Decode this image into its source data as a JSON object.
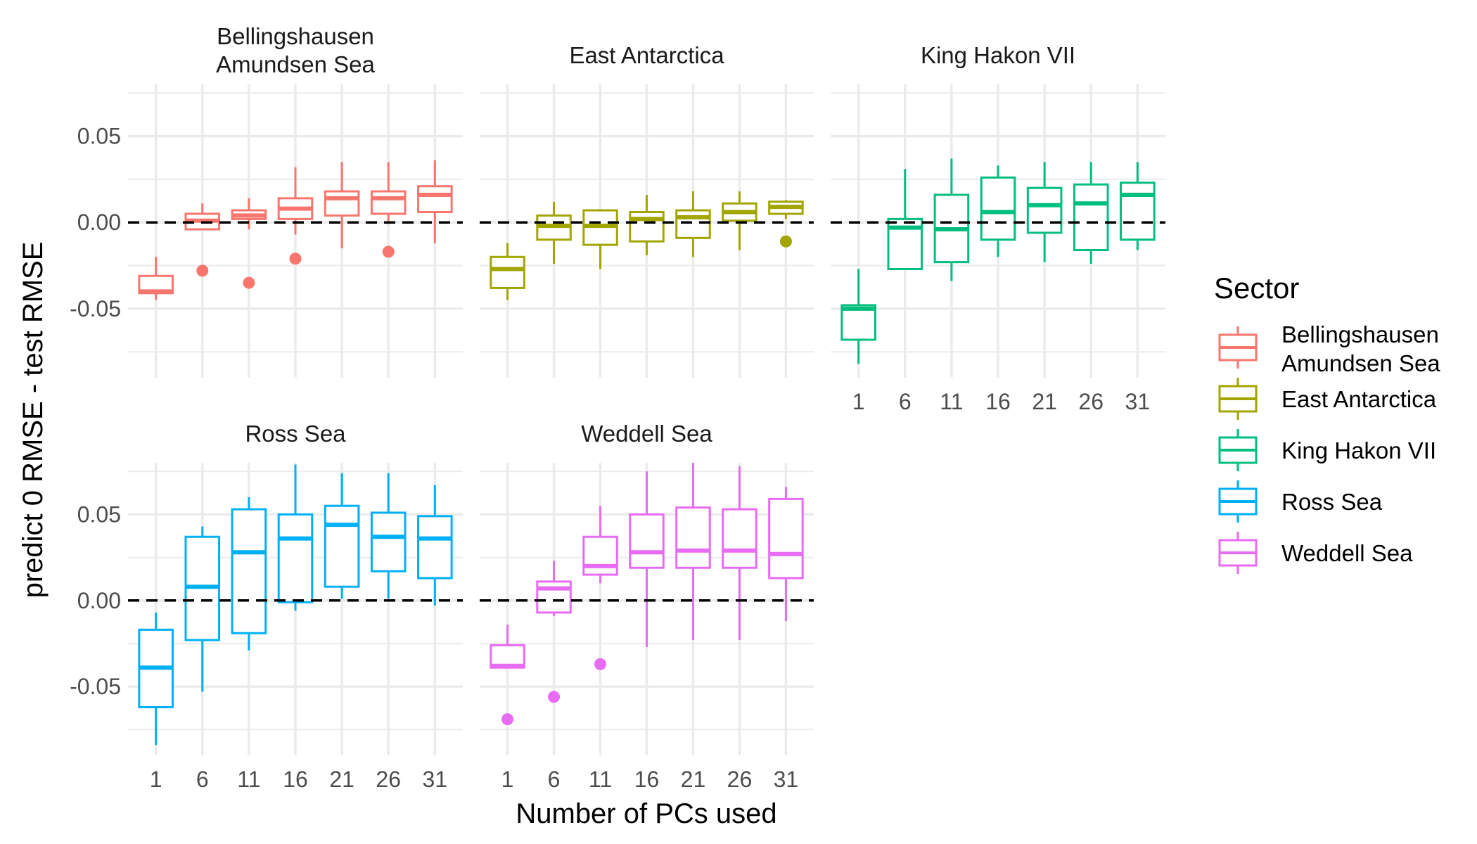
{
  "chart_data": {
    "type": "boxplot",
    "layout": "facet_wrap",
    "xlabel": "Number of PCs used",
    "ylabel": "predict 0 RMSE - test RMSE",
    "x_categories": [
      "1",
      "6",
      "11",
      "16",
      "21",
      "26",
      "31"
    ],
    "y_ticks": [
      {
        "value": -0.05,
        "label": "-0.05"
      },
      {
        "value": 0.0,
        "label": "0.00"
      },
      {
        "value": 0.05,
        "label": "0.05"
      }
    ],
    "ylim": [
      -0.09,
      0.08
    ],
    "reference_line": {
      "y": 0,
      "style": "dashed"
    },
    "grid": true,
    "legend": {
      "title": "Sector",
      "position": "right",
      "items": [
        {
          "line1": "Bellingshausen",
          "line2": "Amundsen Sea",
          "color": "#F8766D"
        },
        {
          "line1": "East Antarctica",
          "line2": "",
          "color": "#A3A500"
        },
        {
          "line1": "King Hakon VII",
          "line2": "",
          "color": "#00BF7D"
        },
        {
          "line1": "Ross Sea",
          "line2": "",
          "color": "#00B0F6"
        },
        {
          "line1": "Weddell Sea",
          "line2": "",
          "color": "#E76BF3"
        }
      ]
    },
    "panels": [
      {
        "title_line1": "Bellingshausen",
        "title_line2": "Amundsen Sea",
        "color": "#F8766D",
        "boxes": [
          {
            "x": "1",
            "lower_whisker": -0.045,
            "q1": -0.041,
            "median": -0.04,
            "q3": -0.031,
            "upper_whisker": -0.02,
            "outliers": []
          },
          {
            "x": "6",
            "lower_whisker": -0.004,
            "q1": -0.004,
            "median": 0.001,
            "q3": 0.005,
            "upper_whisker": 0.011,
            "outliers": [
              -0.028
            ]
          },
          {
            "x": "11",
            "lower_whisker": -0.004,
            "q1": 0.002,
            "median": 0.004,
            "q3": 0.007,
            "upper_whisker": 0.014,
            "outliers": [
              -0.035
            ]
          },
          {
            "x": "16",
            "lower_whisker": -0.007,
            "q1": 0.002,
            "median": 0.008,
            "q3": 0.014,
            "upper_whisker": 0.032,
            "outliers": [
              -0.021
            ]
          },
          {
            "x": "21",
            "lower_whisker": -0.015,
            "q1": 0.004,
            "median": 0.014,
            "q3": 0.018,
            "upper_whisker": 0.035,
            "outliers": []
          },
          {
            "x": "26",
            "lower_whisker": -0.001,
            "q1": 0.005,
            "median": 0.014,
            "q3": 0.018,
            "upper_whisker": 0.035,
            "outliers": [
              -0.017
            ]
          },
          {
            "x": "31",
            "lower_whisker": -0.012,
            "q1": 0.006,
            "median": 0.016,
            "q3": 0.021,
            "upper_whisker": 0.036,
            "outliers": []
          }
        ]
      },
      {
        "title_line1": "East Antarctica",
        "title_line2": "",
        "color": "#A3A500",
        "boxes": [
          {
            "x": "1",
            "lower_whisker": -0.045,
            "q1": -0.038,
            "median": -0.027,
            "q3": -0.02,
            "upper_whisker": -0.012,
            "outliers": []
          },
          {
            "x": "6",
            "lower_whisker": -0.024,
            "q1": -0.01,
            "median": -0.002,
            "q3": 0.004,
            "upper_whisker": 0.012,
            "outliers": []
          },
          {
            "x": "11",
            "lower_whisker": -0.027,
            "q1": -0.013,
            "median": -0.002,
            "q3": 0.007,
            "upper_whisker": 0.007,
            "outliers": []
          },
          {
            "x": "16",
            "lower_whisker": -0.019,
            "q1": -0.011,
            "median": 0.002,
            "q3": 0.006,
            "upper_whisker": 0.016,
            "outliers": []
          },
          {
            "x": "21",
            "lower_whisker": -0.02,
            "q1": -0.009,
            "median": 0.003,
            "q3": 0.007,
            "upper_whisker": 0.018,
            "outliers": []
          },
          {
            "x": "26",
            "lower_whisker": -0.016,
            "q1": 0.001,
            "median": 0.006,
            "q3": 0.011,
            "upper_whisker": 0.018,
            "outliers": []
          },
          {
            "x": "31",
            "lower_whisker": 0.002,
            "q1": 0.005,
            "median": 0.009,
            "q3": 0.012,
            "upper_whisker": 0.013,
            "outliers": [
              -0.011
            ]
          }
        ]
      },
      {
        "title_line1": "King Hakon VII",
        "title_line2": "",
        "color": "#00BF7D",
        "boxes": [
          {
            "x": "1",
            "lower_whisker": -0.082,
            "q1": -0.068,
            "median": -0.05,
            "q3": -0.048,
            "upper_whisker": -0.027,
            "outliers": []
          },
          {
            "x": "6",
            "lower_whisker": -0.027,
            "q1": -0.027,
            "median": -0.003,
            "q3": 0.002,
            "upper_whisker": 0.031,
            "outliers": []
          },
          {
            "x": "11",
            "lower_whisker": -0.034,
            "q1": -0.023,
            "median": -0.004,
            "q3": 0.016,
            "upper_whisker": 0.037,
            "outliers": []
          },
          {
            "x": "16",
            "lower_whisker": -0.02,
            "q1": -0.01,
            "median": 0.006,
            "q3": 0.026,
            "upper_whisker": 0.033,
            "outliers": []
          },
          {
            "x": "21",
            "lower_whisker": -0.023,
            "q1": -0.006,
            "median": 0.01,
            "q3": 0.02,
            "upper_whisker": 0.035,
            "outliers": []
          },
          {
            "x": "26",
            "lower_whisker": -0.024,
            "q1": -0.016,
            "median": 0.011,
            "q3": 0.022,
            "upper_whisker": 0.035,
            "outliers": []
          },
          {
            "x": "31",
            "lower_whisker": -0.016,
            "q1": -0.01,
            "median": 0.016,
            "q3": 0.023,
            "upper_whisker": 0.035,
            "outliers": []
          }
        ]
      },
      {
        "title_line1": "Ross Sea",
        "title_line2": "",
        "color": "#00B0F6",
        "boxes": [
          {
            "x": "1",
            "lower_whisker": -0.084,
            "q1": -0.062,
            "median": -0.039,
            "q3": -0.017,
            "upper_whisker": -0.007,
            "outliers": []
          },
          {
            "x": "6",
            "lower_whisker": -0.053,
            "q1": -0.023,
            "median": 0.008,
            "q3": 0.037,
            "upper_whisker": 0.043,
            "outliers": []
          },
          {
            "x": "11",
            "lower_whisker": -0.029,
            "q1": -0.019,
            "median": 0.028,
            "q3": 0.053,
            "upper_whisker": 0.06,
            "outliers": []
          },
          {
            "x": "16",
            "lower_whisker": -0.006,
            "q1": -0.001,
            "median": 0.036,
            "q3": 0.05,
            "upper_whisker": 0.079,
            "outliers": []
          },
          {
            "x": "21",
            "lower_whisker": 0.001,
            "q1": 0.008,
            "median": 0.044,
            "q3": 0.055,
            "upper_whisker": 0.074,
            "outliers": []
          },
          {
            "x": "26",
            "lower_whisker": 0.001,
            "q1": 0.017,
            "median": 0.037,
            "q3": 0.051,
            "upper_whisker": 0.074,
            "outliers": []
          },
          {
            "x": "31",
            "lower_whisker": -0.003,
            "q1": 0.013,
            "median": 0.036,
            "q3": 0.049,
            "upper_whisker": 0.067,
            "outliers": []
          }
        ]
      },
      {
        "title_line1": "Weddell Sea",
        "title_line2": "",
        "color": "#E76BF3",
        "boxes": [
          {
            "x": "1",
            "lower_whisker": -0.039,
            "q1": -0.039,
            "median": -0.038,
            "q3": -0.026,
            "upper_whisker": -0.014,
            "outliers": [
              -0.069
            ]
          },
          {
            "x": "6",
            "lower_whisker": -0.009,
            "q1": -0.007,
            "median": 0.007,
            "q3": 0.011,
            "upper_whisker": 0.023,
            "outliers": [
              -0.056
            ]
          },
          {
            "x": "11",
            "lower_whisker": 0.01,
            "q1": 0.015,
            "median": 0.02,
            "q3": 0.037,
            "upper_whisker": 0.055,
            "outliers": [
              -0.037
            ]
          },
          {
            "x": "16",
            "lower_whisker": -0.027,
            "q1": 0.019,
            "median": 0.028,
            "q3": 0.05,
            "upper_whisker": 0.075,
            "outliers": []
          },
          {
            "x": "21",
            "lower_whisker": -0.023,
            "q1": 0.019,
            "median": 0.029,
            "q3": 0.054,
            "upper_whisker": 0.08,
            "outliers": []
          },
          {
            "x": "26",
            "lower_whisker": -0.023,
            "q1": 0.019,
            "median": 0.029,
            "q3": 0.053,
            "upper_whisker": 0.078,
            "outliers": []
          },
          {
            "x": "31",
            "lower_whisker": -0.012,
            "q1": 0.013,
            "median": 0.027,
            "q3": 0.059,
            "upper_whisker": 0.066,
            "outliers": []
          }
        ]
      }
    ]
  }
}
